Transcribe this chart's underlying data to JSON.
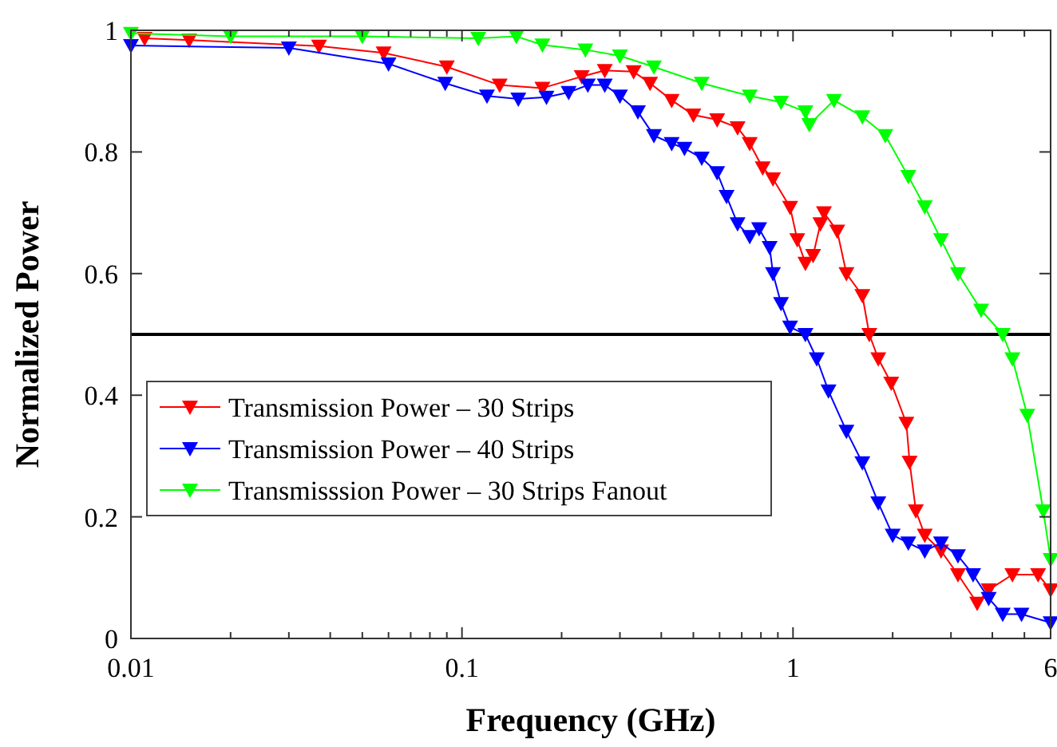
{
  "chart_data": {
    "type": "line",
    "xlabel": "Frequency (GHz)",
    "ylabel": "Normalized Power",
    "log": "x",
    "xlim": [
      0.01,
      6
    ],
    "xticks": [
      0.01,
      0.1,
      1,
      6
    ],
    "ylim": [
      0,
      1
    ],
    "yticks": [
      0,
      0.2,
      0.4,
      0.6,
      0.8,
      1
    ],
    "grid": false,
    "legend": "left",
    "marker": "triangle",
    "line_style": "solid",
    "ref_lines": [
      {
        "axis": "y",
        "value": 0.5,
        "color": "#000000"
      }
    ],
    "series": [
      {
        "name": "Transmission Power – 30 Strips",
        "color": "#ff0000",
        "x": [
          0.011,
          0.015,
          0.037,
          0.058,
          0.09,
          0.13,
          0.175,
          0.23,
          0.27,
          0.33,
          0.37,
          0.43,
          0.5,
          0.59,
          0.68,
          0.74,
          0.81,
          0.87,
          0.98,
          1.03,
          1.09,
          1.15,
          1.21,
          1.24,
          1.36,
          1.45,
          1.62,
          1.7,
          1.81,
          1.98,
          2.2,
          2.25,
          2.35,
          2.5,
          2.8,
          3.15,
          3.6,
          3.9,
          4.6,
          5.5,
          6
        ],
        "values": [
          0.987,
          0.984,
          0.974,
          0.963,
          0.94,
          0.91,
          0.905,
          0.924,
          0.934,
          0.932,
          0.913,
          0.885,
          0.861,
          0.853,
          0.84,
          0.814,
          0.774,
          0.756,
          0.709,
          0.656,
          0.617,
          0.63,
          0.682,
          0.7,
          0.67,
          0.6,
          0.564,
          0.5,
          0.46,
          0.42,
          0.354,
          0.29,
          0.21,
          0.17,
          0.144,
          0.105,
          0.058,
          0.08,
          0.105,
          0.105,
          0.08
        ]
      },
      {
        "name": "Transmission Power – 40 Strips",
        "color": "#0000ff",
        "x": [
          0.01,
          0.03,
          0.06,
          0.089,
          0.119,
          0.148,
          0.18,
          0.21,
          0.24,
          0.27,
          0.3,
          0.34,
          0.38,
          0.43,
          0.47,
          0.53,
          0.59,
          0.63,
          0.68,
          0.74,
          0.79,
          0.85,
          0.87,
          0.92,
          0.98,
          1.09,
          1.18,
          1.28,
          1.45,
          1.62,
          1.81,
          2,
          2.23,
          2.5,
          2.8,
          3.15,
          3.5,
          3.9,
          4.3,
          4.9,
          6
        ],
        "values": [
          0.975,
          0.971,
          0.945,
          0.913,
          0.892,
          0.887,
          0.89,
          0.898,
          0.91,
          0.91,
          0.892,
          0.866,
          0.827,
          0.814,
          0.806,
          0.79,
          0.766,
          0.727,
          0.682,
          0.661,
          0.674,
          0.643,
          0.6,
          0.551,
          0.512,
          0.5,
          0.46,
          0.407,
          0.341,
          0.289,
          0.223,
          0.17,
          0.157,
          0.144,
          0.157,
          0.136,
          0.105,
          0.066,
          0.04,
          0.04,
          0.026
        ]
      },
      {
        "name": "Transmisssion Power – 30 Strips Fanout",
        "color": "#00ff00",
        "x": [
          0.01,
          0.02,
          0.05,
          0.112,
          0.146,
          0.175,
          0.236,
          0.3,
          0.38,
          0.53,
          0.74,
          0.92,
          1.09,
          1.12,
          1.33,
          1.62,
          1.9,
          2.23,
          2.5,
          2.8,
          3.15,
          3.7,
          4.3,
          4.6,
          5.1,
          5.7,
          6
        ],
        "values": [
          0.995,
          0.99,
          0.99,
          0.987,
          0.99,
          0.976,
          0.968,
          0.958,
          0.94,
          0.913,
          0.892,
          0.882,
          0.866,
          0.845,
          0.885,
          0.858,
          0.827,
          0.76,
          0.71,
          0.656,
          0.6,
          0.54,
          0.5,
          0.46,
          0.367,
          0.21,
          0.13
        ]
      }
    ]
  }
}
